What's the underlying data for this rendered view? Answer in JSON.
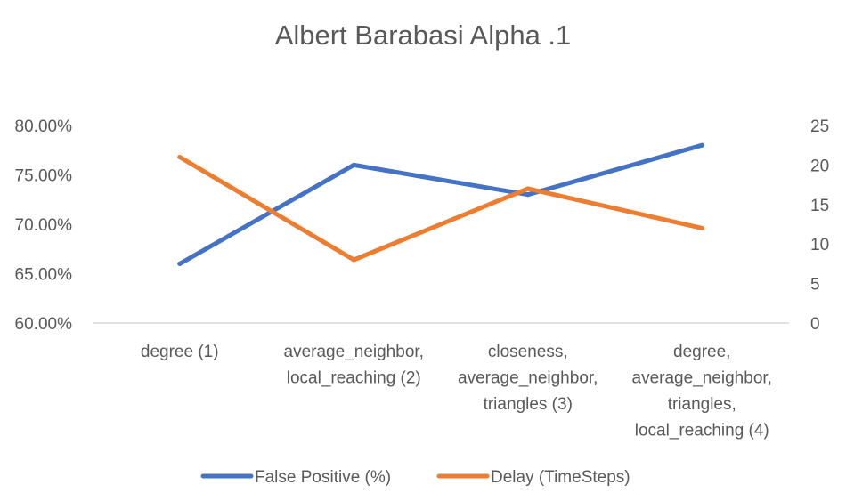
{
  "chart_data": {
    "type": "line",
    "title": "Albert Barabasi Alpha .1",
    "categories": [
      [
        "degree (1)"
      ],
      [
        "average_neighbor,",
        "local_reaching (2)"
      ],
      [
        "closeness,",
        "average_neighbor,",
        "triangles (3)"
      ],
      [
        "degree,",
        "average_neighbor,",
        "triangles,",
        "local_reaching (4)"
      ]
    ],
    "y_left": {
      "ticks": [
        "60.00%",
        "65.00%",
        "70.00%",
        "75.00%",
        "80.00%"
      ],
      "range": [
        60,
        80
      ]
    },
    "y_right": {
      "ticks": [
        "0",
        "5",
        "10",
        "15",
        "20",
        "25"
      ],
      "range": [
        0,
        25
      ]
    },
    "series": [
      {
        "name": "False Positive (%)",
        "axis": "left",
        "color": "#4472C4",
        "values": [
          66,
          76,
          73,
          78
        ]
      },
      {
        "name": "Delay (TimeSteps)",
        "axis": "right",
        "color": "#ED7D31",
        "values": [
          21,
          8,
          17,
          12
        ]
      }
    ],
    "grid": false,
    "legend": "bottom"
  }
}
